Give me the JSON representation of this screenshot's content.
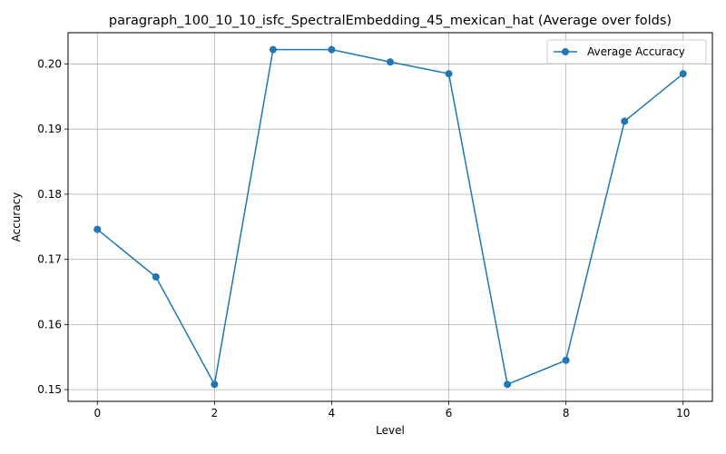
{
  "chart_data": {
    "type": "line",
    "title": "paragraph_100_10_10_isfc_SpectralEmbedding_45_mexican_hat (Average over folds)",
    "xlabel": "Level",
    "ylabel": "Accuracy",
    "x": [
      0,
      1,
      2,
      3,
      4,
      5,
      6,
      7,
      8,
      9,
      10
    ],
    "series": [
      {
        "name": "Average Accuracy",
        "values": [
          0.1746,
          0.1673,
          0.1508,
          0.2022,
          0.2022,
          0.2003,
          0.1985,
          0.1508,
          0.1545,
          0.1912,
          0.1985
        ],
        "color": "#1f77b4",
        "marker": "circle"
      }
    ],
    "xlim": [
      -0.5,
      10.5
    ],
    "ylim": [
      0.1482,
      0.2048
    ],
    "xticks": [
      0,
      2,
      4,
      6,
      8,
      10
    ],
    "yticks": [
      0.15,
      0.16,
      0.17,
      0.18,
      0.19,
      0.2
    ],
    "ytick_labels": [
      "0.15",
      "0.16",
      "0.17",
      "0.18",
      "0.19",
      "0.20"
    ],
    "grid": true,
    "legend_position": "top-right"
  }
}
